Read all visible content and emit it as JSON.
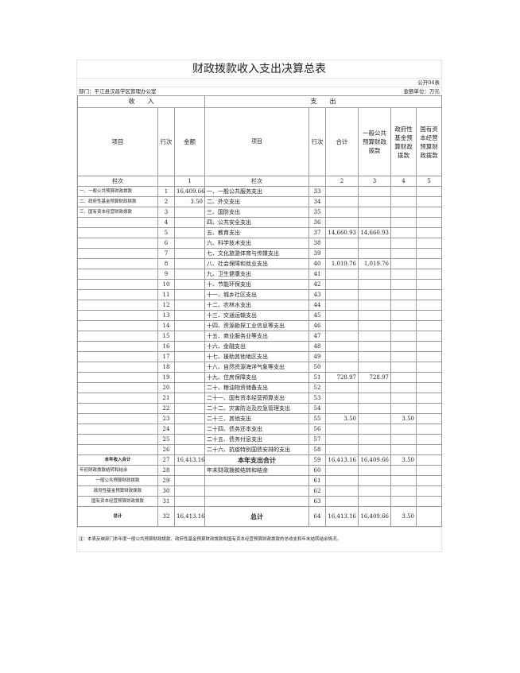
{
  "title": "财政拨款收入支出决算总表",
  "form_code": "公开04表",
  "department": "部门：平江县汉昌学区管理办公室",
  "unit": "金额单位：万元",
  "section_income": "收　　入",
  "section_expense": "支　　出",
  "headers": [
    "项目",
    "行次",
    "金额",
    "项目",
    "行次",
    "合计",
    "一般公共预算财政拨款",
    "政府性基金预算财政拨款",
    "国有资本经营预算财政拨款"
  ],
  "column_index_row": [
    "栏次",
    "",
    "1",
    "栏次",
    "",
    "2",
    "3",
    "4",
    "5"
  ],
  "rows": [
    [
      "一、一般公共预算财政拨款",
      "1",
      "16,409.66",
      "一、一般公共服务支出",
      "33",
      "",
      "",
      "",
      ""
    ],
    [
      "二、政府性基金预算财政拨款",
      "2",
      "3.50",
      "二、外交支出",
      "34",
      "",
      "",
      "",
      ""
    ],
    [
      "三、国有资本经营财政拨款",
      "3",
      "",
      "三、国防支出",
      "35",
      "",
      "",
      "",
      ""
    ],
    [
      "",
      "4",
      "",
      "四、公共安全支出",
      "36",
      "",
      "",
      "",
      ""
    ],
    [
      "",
      "5",
      "",
      "五、教育支出",
      "37",
      "14,660.93",
      "14,660.93",
      "",
      ""
    ],
    [
      "",
      "6",
      "",
      "六、科学技术支出",
      "38",
      "",
      "",
      "",
      ""
    ],
    [
      "",
      "7",
      "",
      "七、文化旅游体育与传媒支出",
      "39",
      "",
      "",
      "",
      ""
    ],
    [
      "",
      "8",
      "",
      "八、社会保障和就业支出",
      "40",
      "1,019.76",
      "1,019.76",
      "",
      ""
    ],
    [
      "",
      "9",
      "",
      "九、卫生健康支出",
      "41",
      "",
      "",
      "",
      ""
    ],
    [
      "",
      "10",
      "",
      "十、节能环保支出",
      "42",
      "",
      "",
      "",
      ""
    ],
    [
      "",
      "11",
      "",
      "十一、城乡社区支出",
      "43",
      "",
      "",
      "",
      ""
    ],
    [
      "",
      "12",
      "",
      "十二、农林水支出",
      "44",
      "",
      "",
      "",
      ""
    ],
    [
      "",
      "13",
      "",
      "十三、交通运输支出",
      "45",
      "",
      "",
      "",
      ""
    ],
    [
      "",
      "14",
      "",
      "十四、资源勘探工业信息等支出",
      "46",
      "",
      "",
      "",
      ""
    ],
    [
      "",
      "15",
      "",
      "十五、商业服务业等支出",
      "47",
      "",
      "",
      "",
      ""
    ],
    [
      "",
      "16",
      "",
      "十六、金融支出",
      "48",
      "",
      "",
      "",
      ""
    ],
    [
      "",
      "17",
      "",
      "十七、援助其他地区支出",
      "49",
      "",
      "",
      "",
      ""
    ],
    [
      "",
      "18",
      "",
      "十八、自然资源海洋气象等支出",
      "50",
      "",
      "",
      "",
      ""
    ],
    [
      "",
      "19",
      "",
      "十九、住房保障支出",
      "51",
      "728.97",
      "728.97",
      "",
      ""
    ],
    [
      "",
      "20",
      "",
      "二十、粮油物资储备支出",
      "52",
      "",
      "",
      "",
      ""
    ],
    [
      "",
      "21",
      "",
      "二十一、国有资本经营预算支出",
      "53",
      "",
      "",
      "",
      ""
    ],
    [
      "",
      "22",
      "",
      "二十二、灾害防治及应急管理支出",
      "54",
      "",
      "",
      "",
      ""
    ],
    [
      "",
      "23",
      "",
      "二十三、其他支出",
      "55",
      "3.50",
      "",
      "3.50",
      ""
    ],
    [
      "",
      "24",
      "",
      "二十四、债务还本支出",
      "56",
      "",
      "",
      "",
      ""
    ],
    [
      "",
      "25",
      "",
      "二十五、债务付息支出",
      "57",
      "",
      "",
      "",
      ""
    ],
    [
      "",
      "26",
      "",
      "二十六、抗疫特别国债安排的支出",
      "58",
      "",
      "",
      "",
      ""
    ],
    [
      "本年收入合计",
      "27",
      "16,413.16",
      "本年支出合计",
      "59",
      "16,413.16",
      "16,409.66",
      "3.50",
      ""
    ],
    [
      "年初财政拨款结转和结余",
      "28",
      "",
      "年末财政拨款结转和结余",
      "60",
      "",
      "",
      "",
      ""
    ],
    [
      "一般公共预算财政拨款",
      "29",
      "",
      "",
      "61",
      "",
      "",
      "",
      ""
    ],
    [
      "政府性基金预算财政拨款",
      "30",
      "",
      "",
      "62",
      "",
      "",
      "",
      ""
    ],
    [
      "国有资本经营预算财政拨款",
      "31",
      "",
      "",
      "63",
      "",
      "",
      "",
      ""
    ],
    [
      "总计",
      "32",
      "16,413.16",
      "总计",
      "64",
      "16,413.16",
      "16,409.66",
      "3.50",
      ""
    ]
  ],
  "note": "注：本表反映部门本年度一般公共预算财政拨款、政府性基金预算财政拨款和国有资本经营预算财政拨款的总收支和年末结转结余情况。"
}
